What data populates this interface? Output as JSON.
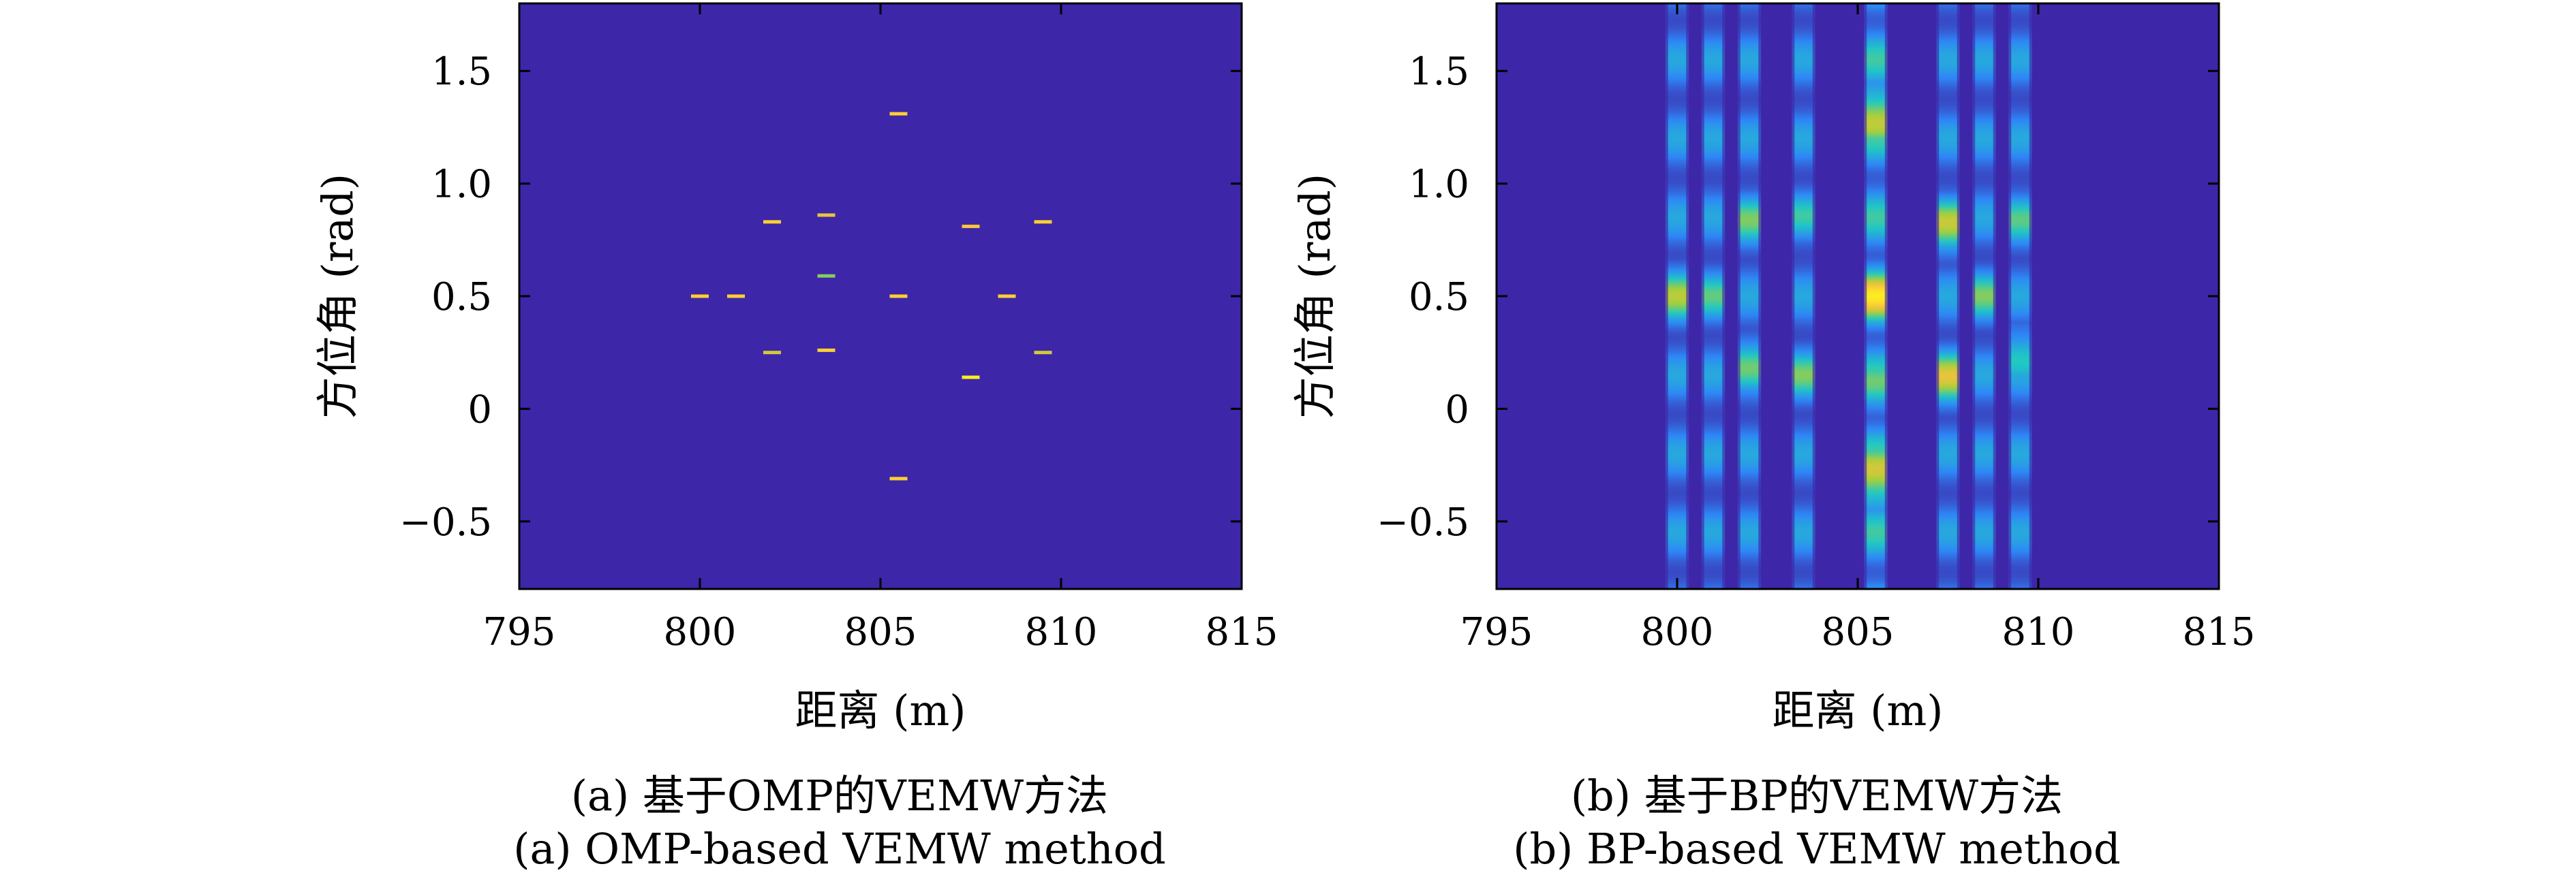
{
  "chart_data": [
    {
      "type": "heatmap",
      "panel": "a",
      "xlabel": "距离 (m)",
      "ylabel": "方位角 (rad)",
      "xlim": [
        795,
        815
      ],
      "ylim": [
        -0.8,
        1.8
      ],
      "xticks": [
        795,
        800,
        805,
        810,
        815
      ],
      "yticks": [
        -0.5,
        0,
        0.5,
        1.0,
        1.5
      ],
      "ytick_labels": [
        "−0.5",
        "0",
        "0.5",
        "1.0",
        "1.5"
      ],
      "background_color": "#3e26a8",
      "colormap": [
        "#3e26a8",
        "#2e87f7",
        "#1fc8c4",
        "#a5cf3a",
        "#fec23c",
        "#f9fb15"
      ],
      "points": [
        {
          "x": 805.5,
          "y": 1.31,
          "value": 0.85
        },
        {
          "x": 802.0,
          "y": 0.83,
          "value": 0.85
        },
        {
          "x": 803.5,
          "y": 0.86,
          "value": 0.75
        },
        {
          "x": 807.5,
          "y": 0.81,
          "value": 0.8
        },
        {
          "x": 809.5,
          "y": 0.83,
          "value": 0.85
        },
        {
          "x": 803.5,
          "y": 0.59,
          "value": 0.55
        },
        {
          "x": 800.0,
          "y": 0.5,
          "value": 0.85
        },
        {
          "x": 801.0,
          "y": 0.5,
          "value": 0.85
        },
        {
          "x": 805.5,
          "y": 0.5,
          "value": 0.85
        },
        {
          "x": 808.5,
          "y": 0.5,
          "value": 0.85
        },
        {
          "x": 802.0,
          "y": 0.25,
          "value": 0.7
        },
        {
          "x": 803.5,
          "y": 0.26,
          "value": 0.85
        },
        {
          "x": 809.5,
          "y": 0.25,
          "value": 0.7
        },
        {
          "x": 807.5,
          "y": 0.14,
          "value": 0.95
        },
        {
          "x": 805.5,
          "y": -0.31,
          "value": 0.85
        }
      ],
      "caption_zh": "(a) 基于OMP的VEMW方法",
      "caption_en": "(a) OMP-based VEMW method"
    },
    {
      "type": "heatmap",
      "panel": "b",
      "xlabel": "距离 (m)",
      "ylabel": "方位角 (rad)",
      "xlim": [
        795,
        815
      ],
      "ylim": [
        -0.8,
        1.8
      ],
      "xticks": [
        795,
        800,
        805,
        810,
        815
      ],
      "yticks": [
        -0.5,
        0,
        0.5,
        1.0,
        1.5
      ],
      "ytick_labels": [
        "−0.5",
        "0",
        "0.5",
        "1.0",
        "1.5"
      ],
      "background_color": "#3e26a8",
      "colormap": [
        "#3e26a8",
        "#2e87f7",
        "#1fc8c4",
        "#a5cf3a",
        "#fec23c",
        "#f9fb15"
      ],
      "stripes": [
        {
          "x": 800.0,
          "width": 0.5,
          "base": 0.3,
          "peaks": [
            {
              "y": 0.5,
              "value": 0.65
            }
          ]
        },
        {
          "x": 801.0,
          "width": 0.5,
          "base": 0.3,
          "peaks": [
            {
              "y": 0.5,
              "value": 0.5
            }
          ]
        },
        {
          "x": 802.0,
          "width": 0.5,
          "base": 0.3,
          "peaks": [
            {
              "y": 0.83,
              "value": 0.55
            },
            {
              "y": 0.2,
              "value": 0.55
            }
          ]
        },
        {
          "x": 803.5,
          "width": 0.5,
          "base": 0.3,
          "peaks": [
            {
              "y": 0.86,
              "value": 0.45
            },
            {
              "y": 0.15,
              "value": 0.55
            }
          ]
        },
        {
          "x": 805.5,
          "width": 0.5,
          "base": 0.45,
          "peaks": [
            {
              "y": 1.31,
              "value": 0.85
            },
            {
              "y": 0.5,
              "value": 0.95
            },
            {
              "y": 0.1,
              "value": 0.55
            },
            {
              "y": -0.31,
              "value": 0.9
            }
          ]
        },
        {
          "x": 807.5,
          "width": 0.5,
          "base": 0.3,
          "peaks": [
            {
              "y": 0.81,
              "value": 0.7
            },
            {
              "y": 0.14,
              "value": 0.75
            }
          ]
        },
        {
          "x": 808.5,
          "width": 0.5,
          "base": 0.3,
          "peaks": [
            {
              "y": 0.5,
              "value": 0.55
            }
          ]
        },
        {
          "x": 809.5,
          "width": 0.5,
          "base": 0.3,
          "peaks": [
            {
              "y": 0.83,
              "value": 0.5
            },
            {
              "y": 0.25,
              "value": 0.5
            }
          ]
        }
      ],
      "caption_zh": "(b) 基于BP的VEMW方法",
      "caption_en": "(b) BP-based VEMW method"
    }
  ]
}
